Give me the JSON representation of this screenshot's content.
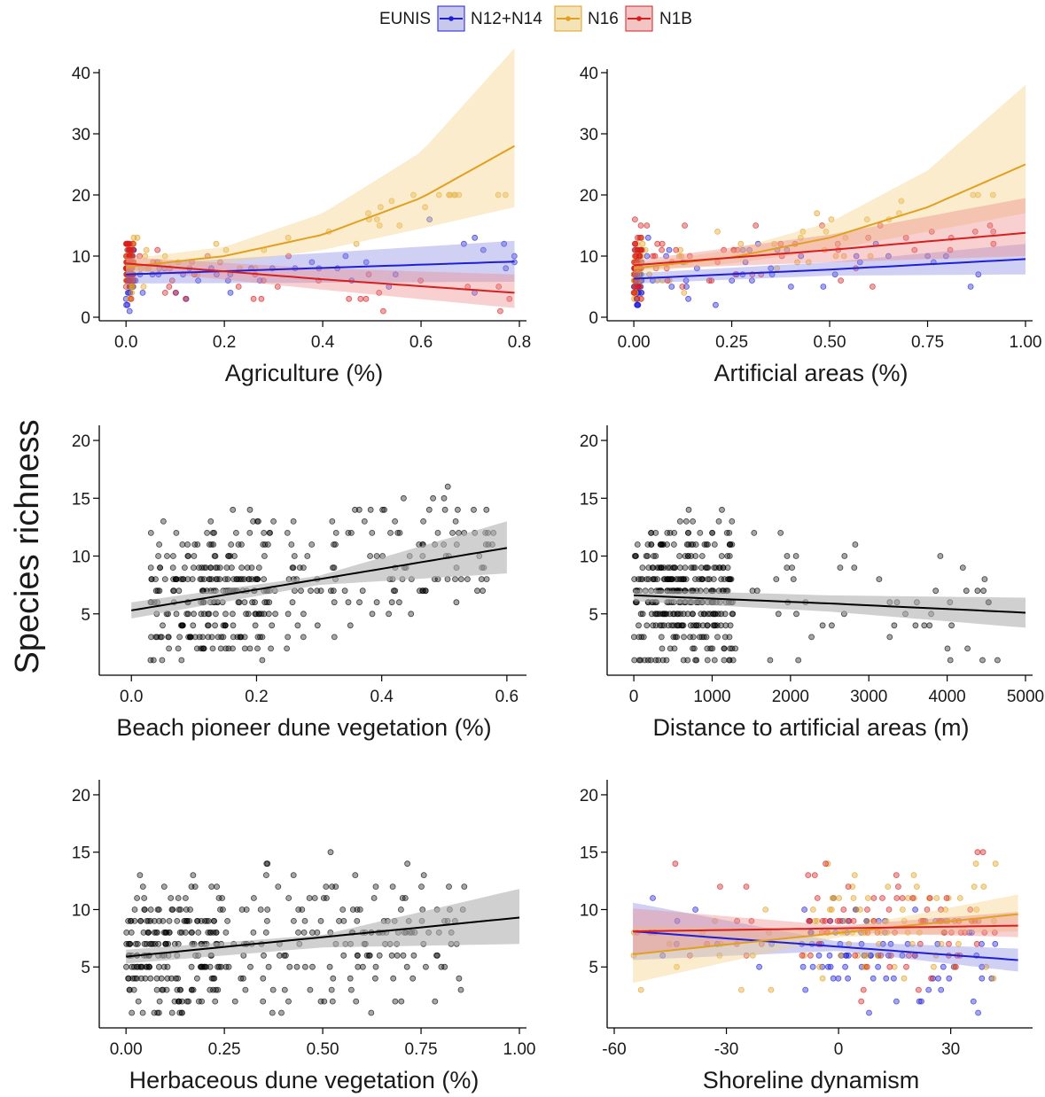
{
  "y_axis_title": "Species richness",
  "legend": {
    "title": "EUNIS",
    "entries": [
      {
        "name": "N12+N14",
        "color": "#1f1fd6"
      },
      {
        "name": "N16",
        "color": "#e0a020"
      },
      {
        "name": "N1B",
        "color": "#d61f1f"
      }
    ]
  },
  "chart_data": [
    {
      "id": "agriculture",
      "type": "scatter",
      "xlabel": "Agriculture (%)",
      "ylabel": "Species richness",
      "xlim": [
        -0.04,
        0.8
      ],
      "ylim": [
        0,
        40
      ],
      "xticks": [
        0,
        0.2,
        0.4,
        0.6,
        0.8
      ],
      "xtick_labels": [
        "0.0",
        "0.2",
        "0.4",
        "0.6",
        "0.8"
      ],
      "yticks": [
        0,
        10,
        20,
        30,
        40
      ],
      "ytick_labels": [
        "0",
        "10",
        "20",
        "30",
        "40"
      ],
      "grouped": true,
      "series": [
        {
          "name": "N12+N14",
          "fit": [
            [
              0,
              7.0
            ],
            [
              0.79,
              9.1
            ]
          ],
          "band_lo": [
            [
              0,
              5.5
            ],
            [
              0.79,
              5.8
            ]
          ],
          "band_hi": [
            [
              0,
              8.5
            ],
            [
              0.79,
              12.5
            ]
          ]
        },
        {
          "name": "N16",
          "fit": [
            [
              0,
              8.2
            ],
            [
              0.2,
              10.0
            ],
            [
              0.4,
              13.5
            ],
            [
              0.6,
              19.5
            ],
            [
              0.79,
              28.0
            ]
          ],
          "band_lo": [
            [
              0,
              7.0
            ],
            [
              0.2,
              8.8
            ],
            [
              0.4,
              11.0
            ],
            [
              0.6,
              14.5
            ],
            [
              0.79,
              18.0
            ]
          ],
          "band_hi": [
            [
              0,
              9.5
            ],
            [
              0.2,
              11.5
            ],
            [
              0.4,
              17.0
            ],
            [
              0.6,
              27.0
            ],
            [
              0.79,
              44.0
            ]
          ]
        },
        {
          "name": "N1B",
          "fit": [
            [
              0,
              8.8
            ],
            [
              0.4,
              6.2
            ],
            [
              0.79,
              4.0
            ]
          ],
          "band_lo": [
            [
              0,
              7.8
            ],
            [
              0.4,
              4.5
            ],
            [
              0.79,
              1.5
            ]
          ],
          "band_hi": [
            [
              0,
              9.8
            ],
            [
              0.4,
              8.0
            ],
            [
              0.79,
              7.0
            ]
          ]
        }
      ]
    },
    {
      "id": "artificial",
      "type": "scatter",
      "xlabel": "Artificial areas (%)",
      "ylabel": "Species richness",
      "xlim": [
        -0.05,
        1.0
      ],
      "ylim": [
        0,
        40
      ],
      "xticks": [
        0,
        0.25,
        0.5,
        0.75,
        1.0
      ],
      "xtick_labels": [
        "0.00",
        "0.25",
        "0.50",
        "0.75",
        "1.00"
      ],
      "yticks": [
        0,
        10,
        20,
        30,
        40
      ],
      "ytick_labels": [
        "0",
        "10",
        "20",
        "30",
        "40"
      ],
      "grouped": true,
      "series": [
        {
          "name": "N12+N14",
          "fit": [
            [
              0,
              6.3
            ],
            [
              0.5,
              7.8
            ],
            [
              1.0,
              9.5
            ]
          ],
          "band_lo": [
            [
              0,
              5.5
            ],
            [
              0.5,
              6.8
            ],
            [
              1.0,
              7.0
            ]
          ],
          "band_hi": [
            [
              0,
              7.2
            ],
            [
              0.5,
              9.0
            ],
            [
              1.0,
              12.0
            ]
          ]
        },
        {
          "name": "N16",
          "fit": [
            [
              0,
              8.0
            ],
            [
              0.25,
              9.8
            ],
            [
              0.5,
              13.0
            ],
            [
              0.75,
              18.0
            ],
            [
              1.0,
              25.0
            ]
          ],
          "band_lo": [
            [
              0,
              7.2
            ],
            [
              0.25,
              8.8
            ],
            [
              0.5,
              11.0
            ],
            [
              0.75,
              14.0
            ],
            [
              1.0,
              17.0
            ]
          ],
          "band_hi": [
            [
              0,
              8.8
            ],
            [
              0.25,
              11.0
            ],
            [
              0.5,
              15.5
            ],
            [
              0.75,
              24.0
            ],
            [
              1.0,
              38.0
            ]
          ]
        },
        {
          "name": "N1B",
          "fit": [
            [
              0,
              8.5
            ],
            [
              0.5,
              11.0
            ],
            [
              1.0,
              13.8
            ]
          ],
          "band_lo": [
            [
              0,
              7.8
            ],
            [
              0.5,
              9.0
            ],
            [
              1.0,
              10.0
            ]
          ],
          "band_hi": [
            [
              0,
              9.3
            ],
            [
              0.5,
              13.5
            ],
            [
              1.0,
              19.5
            ]
          ]
        }
      ]
    },
    {
      "id": "beach",
      "type": "scatter",
      "xlabel": "Beach pioneer dune vegetation (%)",
      "ylabel": "Species richness",
      "xlim": [
        -0.04,
        0.62
      ],
      "ylim": [
        0,
        21
      ],
      "xticks": [
        0,
        0.2,
        0.4,
        0.6
      ],
      "xtick_labels": [
        "0.0",
        "0.2",
        "0.4",
        "0.6"
      ],
      "yticks": [
        5,
        10,
        15,
        20
      ],
      "ytick_labels": [
        "5",
        "10",
        "15",
        "20"
      ],
      "grouped": false,
      "series": [
        {
          "name": "",
          "fit": [
            [
              0,
              5.3
            ],
            [
              0.6,
              10.7
            ]
          ],
          "band_lo": [
            [
              0,
              4.6
            ],
            [
              0.3,
              7.5
            ],
            [
              0.6,
              8.5
            ]
          ],
          "band_hi": [
            [
              0,
              6.0
            ],
            [
              0.3,
              8.3
            ],
            [
              0.6,
              13.0
            ]
          ]
        }
      ]
    },
    {
      "id": "distance",
      "type": "scatter",
      "xlabel": "Distance to artificial areas (m)",
      "ylabel": "Species richness",
      "xlim": [
        -250,
        5000
      ],
      "ylim": [
        0,
        21
      ],
      "xticks": [
        0,
        1000,
        2000,
        3000,
        4000,
        5000
      ],
      "xtick_labels": [
        "0",
        "1000",
        "2000",
        "3000",
        "4000",
        "5000"
      ],
      "yticks": [
        5,
        10,
        15,
        20
      ],
      "ytick_labels": [
        "5",
        "10",
        "15",
        "20"
      ],
      "grouped": false,
      "series": [
        {
          "name": "",
          "fit": [
            [
              0,
              6.6
            ],
            [
              2500,
              5.9
            ],
            [
              5000,
              5.1
            ]
          ],
          "band_lo": [
            [
              0,
              6.1
            ],
            [
              2500,
              5.2
            ],
            [
              5000,
              3.8
            ]
          ],
          "band_hi": [
            [
              0,
              7.1
            ],
            [
              2500,
              6.6
            ],
            [
              5000,
              6.4
            ]
          ]
        }
      ]
    },
    {
      "id": "herbaceous",
      "type": "scatter",
      "xlabel": "Herbaceous dune vegetation (%)",
      "ylabel": "Species richness",
      "xlim": [
        -0.05,
        1.0
      ],
      "ylim": [
        0,
        21
      ],
      "xticks": [
        0,
        0.25,
        0.5,
        0.75,
        1.0
      ],
      "xtick_labels": [
        "0.00",
        "0.25",
        "0.50",
        "0.75",
        "1.00"
      ],
      "yticks": [
        5,
        10,
        15,
        20
      ],
      "ytick_labels": [
        "5",
        "10",
        "15",
        "20"
      ],
      "grouped": false,
      "series": [
        {
          "name": "",
          "fit": [
            [
              0,
              5.9
            ],
            [
              1.0,
              9.3
            ]
          ],
          "band_lo": [
            [
              0,
              5.3
            ],
            [
              0.5,
              6.7
            ],
            [
              1.0,
              7.0
            ]
          ],
          "band_hi": [
            [
              0,
              6.5
            ],
            [
              0.5,
              7.8
            ],
            [
              1.0,
              11.8
            ]
          ]
        }
      ]
    },
    {
      "id": "shoreline",
      "type": "scatter",
      "xlabel": "Shoreline dynamism",
      "ylabel": "Species richness",
      "xlim": [
        -60,
        50
      ],
      "ylim": [
        0,
        21
      ],
      "xticks": [
        -60,
        -30,
        0,
        30
      ],
      "xtick_labels": [
        "-60",
        "-30",
        "0",
        "30"
      ],
      "yticks": [
        5,
        10,
        15,
        20
      ],
      "ytick_labels": [
        "5",
        "10",
        "15",
        "20"
      ],
      "grouped": true,
      "series": [
        {
          "name": "N12+N14",
          "fit": [
            [
              -55,
              8.1
            ],
            [
              48,
              5.6
            ]
          ],
          "band_lo": [
            [
              -55,
              5.6
            ],
            [
              0,
              6.4
            ],
            [
              48,
              4.6
            ]
          ],
          "band_hi": [
            [
              -55,
              10.6
            ],
            [
              0,
              7.2
            ],
            [
              48,
              6.6
            ]
          ]
        },
        {
          "name": "N16",
          "fit": [
            [
              -55,
              6.1
            ],
            [
              48,
              9.6
            ]
          ],
          "band_lo": [
            [
              -55,
              3.6
            ],
            [
              0,
              7.6
            ],
            [
              48,
              8.1
            ]
          ],
          "band_hi": [
            [
              -55,
              8.6
            ],
            [
              0,
              8.3
            ],
            [
              48,
              11.3
            ]
          ]
        },
        {
          "name": "N1B",
          "fit": [
            [
              -55,
              8.1
            ],
            [
              48,
              8.6
            ]
          ],
          "band_lo": [
            [
              -55,
              6.1
            ],
            [
              0,
              8.0
            ],
            [
              48,
              7.6
            ]
          ],
          "band_hi": [
            [
              -55,
              10.1
            ],
            [
              0,
              8.6
            ],
            [
              48,
              9.8
            ]
          ]
        }
      ]
    }
  ]
}
